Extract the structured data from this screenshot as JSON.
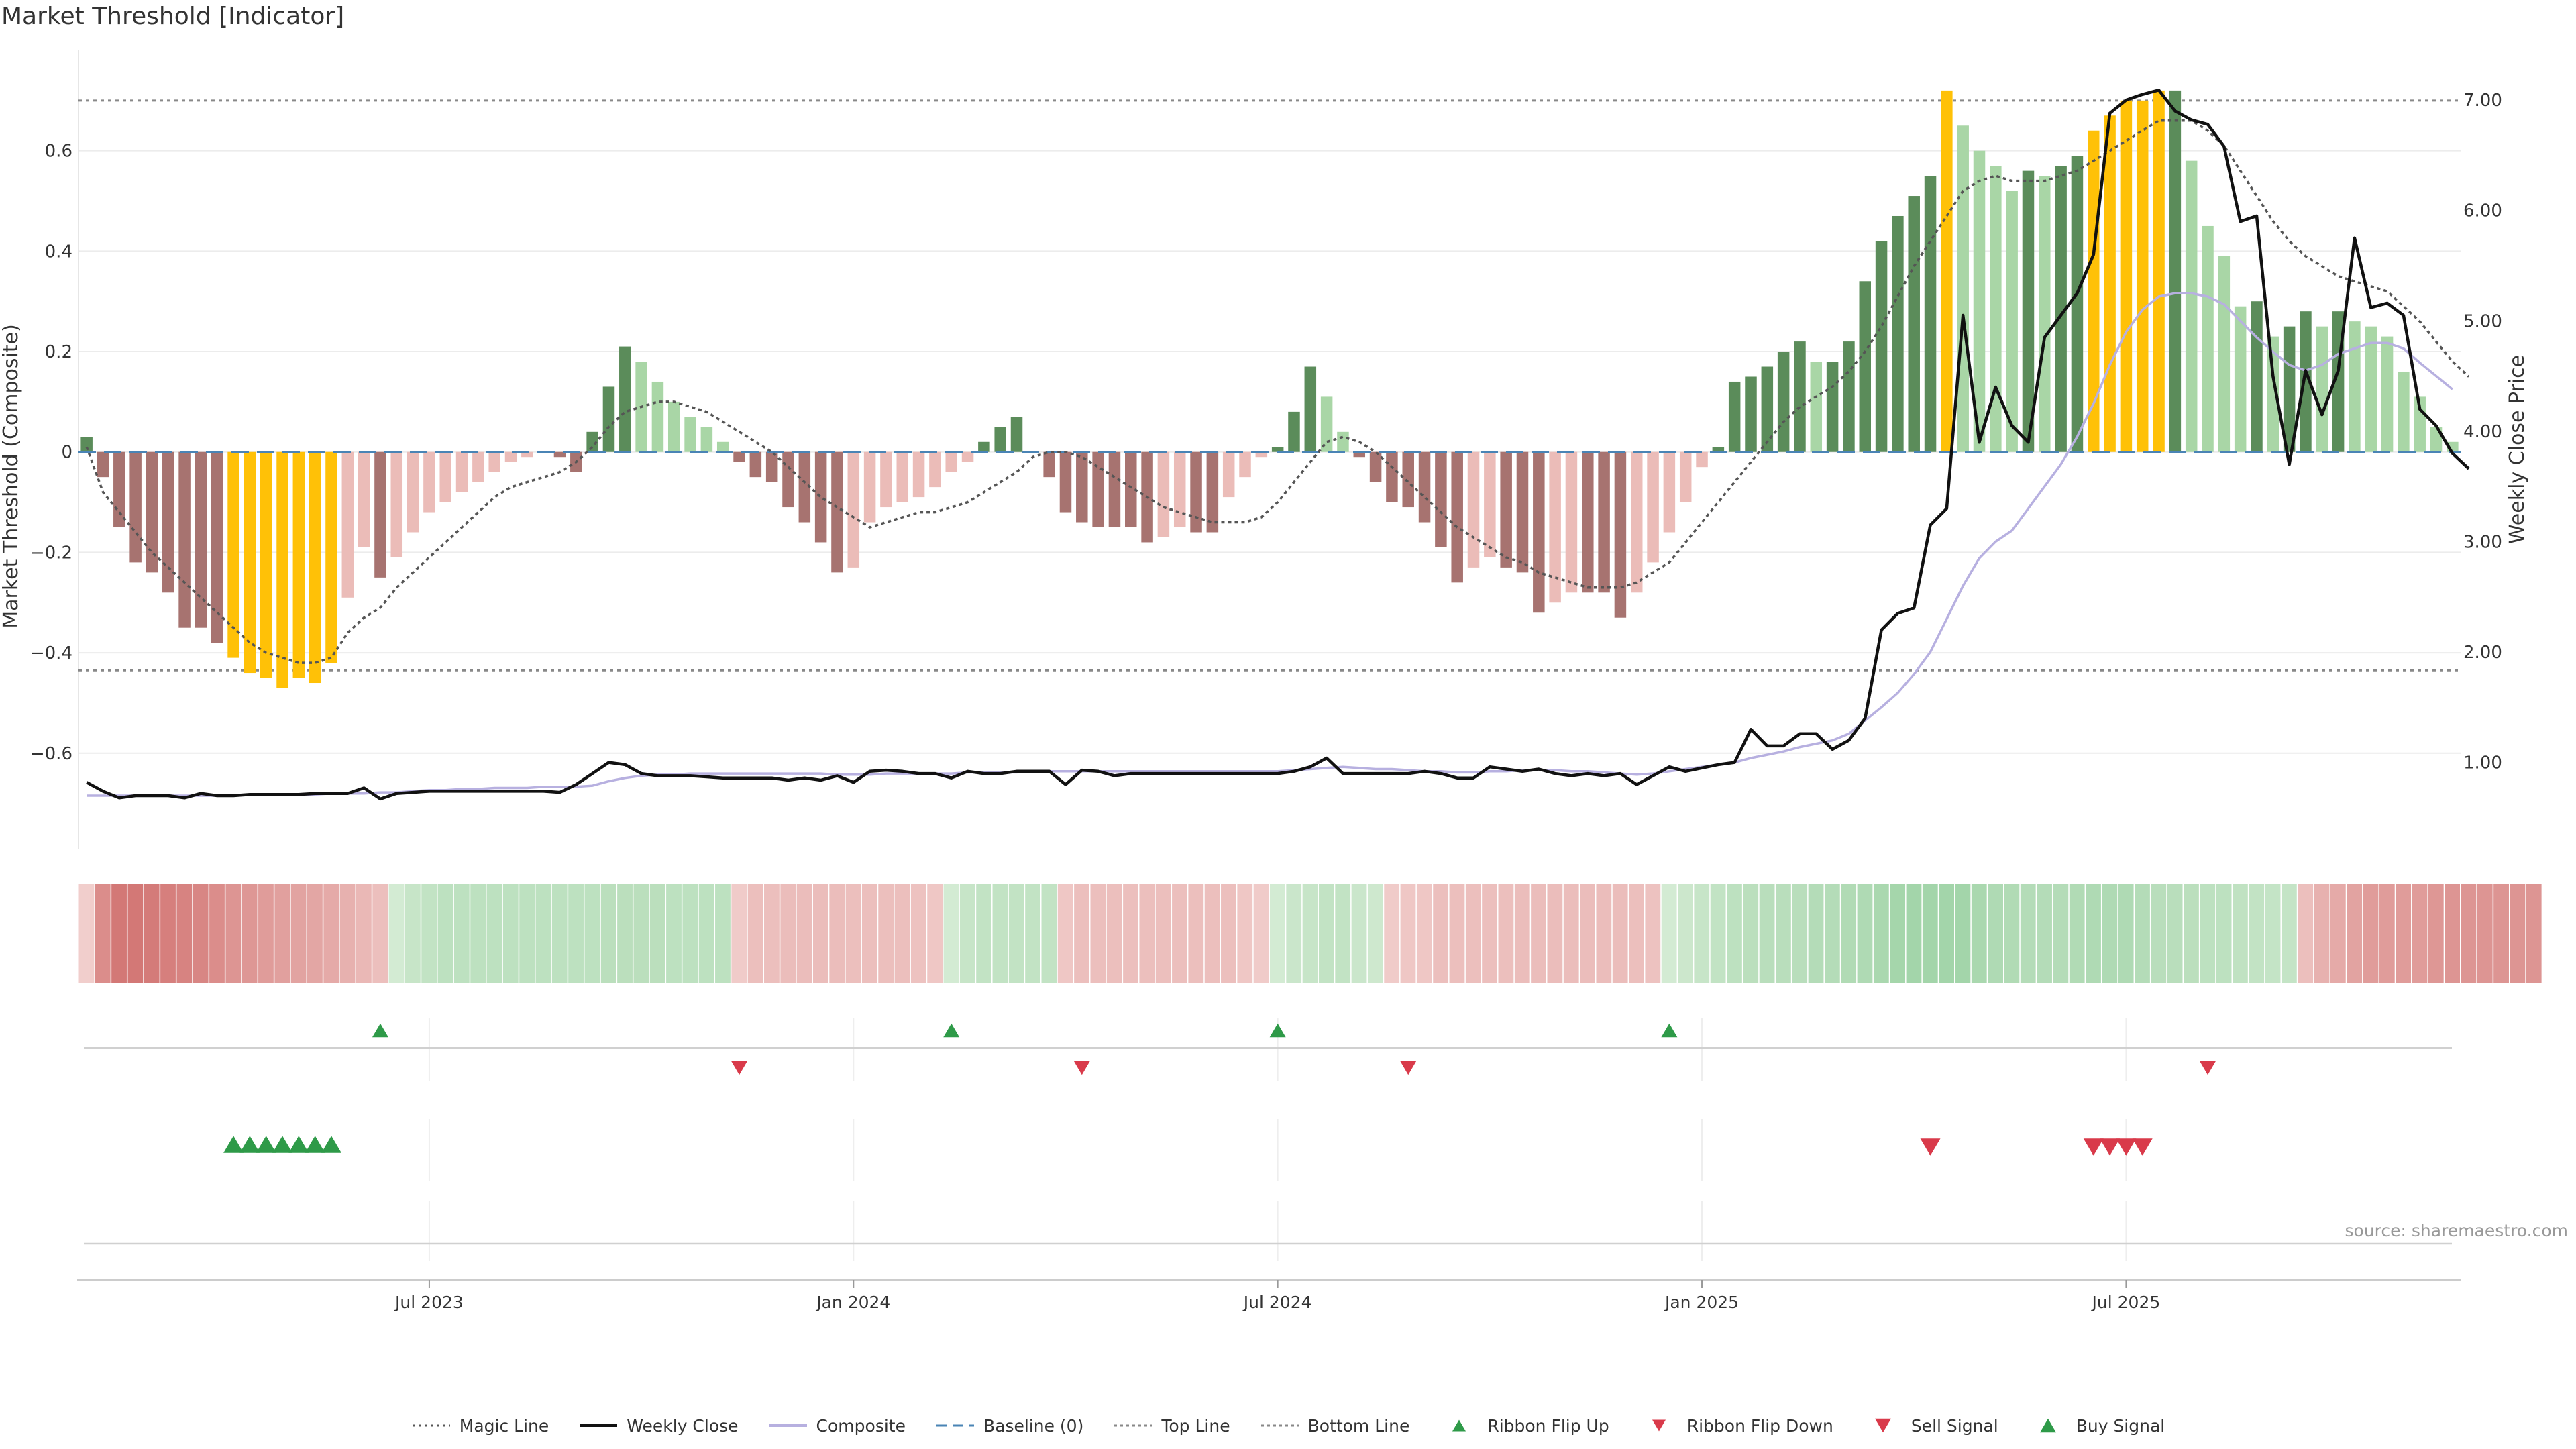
{
  "title": "Market Threshold [Indicator]",
  "source": "source: sharemaestro.com",
  "chart_data": {
    "type": "bar",
    "ylabel_left": "Market Threshold (Composite)",
    "ylabel_right": "Weekly Close Price",
    "ylim_left": [
      -0.79,
      0.8
    ],
    "ylim_right": [
      0.22,
      7.45
    ],
    "yticks_left": [
      -0.6,
      -0.4,
      -0.2,
      0,
      0.2,
      0.4,
      0.6
    ],
    "yticks_left_labels": [
      "−0.6",
      "−0.4",
      "−0.2",
      "0",
      "0.2",
      "0.4",
      "0.6"
    ],
    "yticks_right": [
      1,
      2,
      3,
      4,
      5,
      6,
      7
    ],
    "yticks_right_labels": [
      "1.00",
      "2.00",
      "3.00",
      "4.00",
      "5.00",
      "6.00",
      "7.00"
    ],
    "top_line": 0.7,
    "bottom_line": -0.435,
    "x_ticks": [
      "Jul 2023",
      "Jan 2024",
      "Jul 2024",
      "Jan 2025",
      "Jul 2025"
    ],
    "x_tick_week_index": [
      21,
      47,
      73,
      99,
      125
    ],
    "colors": {
      "bull_strong": "#5b8c5a",
      "bull_weak": "#a9d6a6",
      "bear_strong": "#a77370",
      "bear_weak": "#ebbcb8",
      "extreme": "#ffc107",
      "weekly_close": "#111111",
      "composite": "#b7b0e0",
      "magic": "#555555",
      "baseline": "#4a84b5",
      "threshold": "#888888",
      "buy": "#2e9a48",
      "sell": "#d93a4a"
    },
    "bars": [
      0.03,
      -0.05,
      -0.15,
      -0.22,
      -0.24,
      -0.28,
      -0.35,
      -0.35,
      -0.38,
      -0.41,
      -0.44,
      -0.45,
      -0.47,
      -0.45,
      -0.46,
      -0.42,
      -0.29,
      -0.19,
      -0.25,
      -0.21,
      -0.16,
      -0.12,
      -0.1,
      -0.08,
      -0.06,
      -0.04,
      -0.02,
      -0.01,
      0,
      -0.01,
      -0.04,
      0.04,
      0.13,
      0.21,
      0.18,
      0.14,
      0.1,
      0.07,
      0.05,
      0.02,
      -0.02,
      -0.05,
      -0.06,
      -0.11,
      -0.14,
      -0.18,
      -0.24,
      -0.23,
      -0.14,
      -0.11,
      -0.1,
      -0.09,
      -0.07,
      -0.04,
      -0.02,
      0.02,
      0.05,
      0.07,
      0,
      -0.05,
      -0.12,
      -0.14,
      -0.15,
      -0.15,
      -0.15,
      -0.18,
      -0.17,
      -0.15,
      -0.16,
      -0.16,
      -0.09,
      -0.05,
      -0.01,
      0.01,
      0.08,
      0.17,
      0.11,
      0.04,
      -0.01,
      -0.06,
      -0.1,
      -0.11,
      -0.14,
      -0.19,
      -0.26,
      -0.23,
      -0.21,
      -0.23,
      -0.24,
      -0.32,
      -0.3,
      -0.28,
      -0.28,
      -0.28,
      -0.33,
      -0.28,
      -0.22,
      -0.16,
      -0.1,
      -0.03,
      0.01,
      0.14,
      0.15,
      0.17,
      0.2,
      0.22,
      0.18,
      0.18,
      0.22,
      0.34,
      0.42,
      0.47,
      0.51,
      0.55,
      0.72,
      0.65,
      0.6,
      0.57,
      0.52,
      0.56,
      0.55,
      0.57,
      0.59,
      0.64,
      0.67,
      0.7,
      0.7,
      0.72,
      0.72,
      0.58,
      0.45,
      0.39,
      0.29,
      0.3,
      0.23,
      0.25,
      0.28,
      0.25,
      0.28,
      0.26,
      0.25,
      0.23,
      0.16,
      0.11,
      0.05,
      0.02
    ],
    "extreme_weeks": [
      9,
      10,
      11,
      12,
      13,
      14,
      15,
      114,
      123,
      124,
      125,
      126,
      127
    ],
    "weekly_close": [
      0.82,
      0.74,
      0.68,
      0.7,
      0.7,
      0.7,
      0.68,
      0.72,
      0.7,
      0.7,
      0.71,
      0.71,
      0.71,
      0.71,
      0.72,
      0.72,
      0.72,
      0.77,
      0.67,
      0.72,
      0.73,
      0.74,
      0.74,
      0.74,
      0.74,
      0.74,
      0.74,
      0.74,
      0.74,
      0.73,
      0.8,
      0.9,
      1.0,
      0.98,
      0.9,
      0.88,
      0.88,
      0.88,
      0.87,
      0.86,
      0.86,
      0.86,
      0.86,
      0.84,
      0.86,
      0.84,
      0.88,
      0.82,
      0.92,
      0.93,
      0.92,
      0.9,
      0.9,
      0.86,
      0.92,
      0.9,
      0.9,
      0.92,
      0.92,
      0.92,
      0.8,
      0.93,
      0.92,
      0.88,
      0.9,
      0.9,
      0.9,
      0.9,
      0.9,
      0.9,
      0.9,
      0.9,
      0.9,
      0.9,
      0.92,
      0.96,
      1.04,
      0.9,
      0.9,
      0.9,
      0.9,
      0.9,
      0.92,
      0.9,
      0.86,
      0.86,
      0.96,
      0.94,
      0.92,
      0.94,
      0.9,
      0.88,
      0.9,
      0.88,
      0.9,
      0.8,
      0.88,
      0.96,
      0.92,
      0.95,
      0.98,
      1.0,
      1.3,
      1.15,
      1.15,
      1.26,
      1.26,
      1.12,
      1.2,
      1.4,
      2.2,
      2.35,
      2.4,
      3.15,
      3.3,
      5.05,
      3.9,
      4.4,
      4.05,
      3.9,
      4.85,
      5.05,
      5.25,
      5.6,
      6.88,
      7.0,
      7.05,
      7.09,
      6.9,
      6.82,
      6.78,
      6.58,
      5.9,
      5.95,
      4.5,
      3.7,
      4.55,
      4.15,
      4.55,
      5.75,
      5.12,
      5.16,
      5.05,
      4.2,
      4.05,
      3.8,
      3.66
    ],
    "composite_price_scale": [
      0.7,
      0.7,
      0.7,
      0.7,
      0.7,
      0.7,
      0.7,
      0.7,
      0.7,
      0.7,
      0.71,
      0.71,
      0.71,
      0.71,
      0.71,
      0.72,
      0.72,
      0.72,
      0.73,
      0.73,
      0.74,
      0.75,
      0.75,
      0.76,
      0.76,
      0.77,
      0.77,
      0.77,
      0.78,
      0.78,
      0.78,
      0.79,
      0.83,
      0.86,
      0.88,
      0.89,
      0.89,
      0.9,
      0.9,
      0.9,
      0.9,
      0.9,
      0.9,
      0.9,
      0.9,
      0.9,
      0.89,
      0.89,
      0.89,
      0.9,
      0.9,
      0.9,
      0.9,
      0.9,
      0.91,
      0.91,
      0.91,
      0.91,
      0.92,
      0.92,
      0.92,
      0.92,
      0.92,
      0.92,
      0.92,
      0.92,
      0.92,
      0.92,
      0.92,
      0.92,
      0.92,
      0.92,
      0.92,
      0.92,
      0.93,
      0.94,
      0.95,
      0.96,
      0.95,
      0.94,
      0.94,
      0.93,
      0.92,
      0.92,
      0.91,
      0.91,
      0.92,
      0.92,
      0.93,
      0.93,
      0.93,
      0.92,
      0.92,
      0.91,
      0.9,
      0.89,
      0.9,
      0.92,
      0.94,
      0.96,
      0.98,
      1.0,
      1.04,
      1.07,
      1.1,
      1.14,
      1.17,
      1.2,
      1.26,
      1.38,
      1.5,
      1.63,
      1.8,
      2.0,
      2.3,
      2.6,
      2.85,
      3.0,
      3.1,
      3.3,
      3.5,
      3.7,
      3.95,
      4.25,
      4.6,
      4.9,
      5.1,
      5.22,
      5.25,
      5.25,
      5.22,
      5.15,
      5.0,
      4.85,
      4.72,
      4.6,
      4.55,
      4.6,
      4.7,
      4.75,
      4.8,
      4.8,
      4.75,
      4.62,
      4.5,
      4.38
    ],
    "magic_line": [
      0.01,
      -0.08,
      -0.12,
      -0.16,
      -0.2,
      -0.23,
      -0.26,
      -0.29,
      -0.32,
      -0.35,
      -0.38,
      -0.4,
      -0.41,
      -0.42,
      -0.42,
      -0.41,
      -0.36,
      -0.33,
      -0.31,
      -0.27,
      -0.24,
      -0.21,
      -0.18,
      -0.15,
      -0.12,
      -0.09,
      -0.07,
      -0.06,
      -0.05,
      -0.04,
      -0.02,
      0.01,
      0.05,
      0.08,
      0.09,
      0.1,
      0.1,
      0.09,
      0.08,
      0.06,
      0.04,
      0.02,
      0,
      -0.03,
      -0.06,
      -0.09,
      -0.11,
      -0.13,
      -0.15,
      -0.14,
      -0.13,
      -0.12,
      -0.12,
      -0.11,
      -0.1,
      -0.08,
      -0.06,
      -0.04,
      -0.01,
      0.0,
      0.0,
      -0.01,
      -0.03,
      -0.05,
      -0.07,
      -0.09,
      -0.11,
      -0.12,
      -0.13,
      -0.14,
      -0.14,
      -0.14,
      -0.13,
      -0.1,
      -0.06,
      -0.02,
      0.02,
      0.03,
      0.02,
      0.0,
      -0.03,
      -0.06,
      -0.09,
      -0.12,
      -0.15,
      -0.17,
      -0.19,
      -0.21,
      -0.22,
      -0.24,
      -0.25,
      -0.26,
      -0.27,
      -0.27,
      -0.27,
      -0.26,
      -0.24,
      -0.22,
      -0.18,
      -0.14,
      -0.1,
      -0.06,
      -0.02,
      0.02,
      0.06,
      0.09,
      0.11,
      0.13,
      0.16,
      0.2,
      0.25,
      0.31,
      0.37,
      0.42,
      0.47,
      0.52,
      0.54,
      0.55,
      0.54,
      0.54,
      0.54,
      0.55,
      0.56,
      0.58,
      0.6,
      0.62,
      0.64,
      0.66,
      0.66,
      0.66,
      0.64,
      0.61,
      0.56,
      0.51,
      0.46,
      0.42,
      0.39,
      0.37,
      0.35,
      0.34,
      0.33,
      0.32,
      0.29,
      0.26,
      0.22,
      0.18,
      0.15
    ],
    "ribbon": [
      -0.1,
      -0.55,
      -0.7,
      -0.7,
      -0.68,
      -0.65,
      -0.62,
      -0.6,
      -0.55,
      -0.5,
      -0.48,
      -0.45,
      -0.42,
      -0.4,
      -0.38,
      -0.35,
      -0.3,
      -0.25,
      -0.2,
      0.12,
      0.25,
      0.3,
      0.35,
      0.35,
      0.35,
      0.35,
      0.35,
      0.35,
      0.35,
      0.35,
      0.35,
      0.35,
      0.38,
      0.38,
      0.38,
      0.38,
      0.35,
      0.35,
      0.35,
      0.35,
      -0.12,
      -0.2,
      -0.2,
      -0.22,
      -0.22,
      -0.22,
      -0.22,
      -0.2,
      -0.2,
      -0.2,
      -0.2,
      -0.18,
      -0.15,
      0.12,
      0.25,
      0.3,
      0.3,
      0.3,
      0.3,
      0.3,
      -0.15,
      -0.2,
      -0.2,
      -0.2,
      -0.2,
      -0.2,
      -0.2,
      -0.2,
      -0.2,
      -0.2,
      -0.2,
      -0.15,
      -0.12,
      0.12,
      0.22,
      0.25,
      0.3,
      0.3,
      0.22,
      0.18,
      -0.12,
      -0.15,
      -0.15,
      -0.2,
      -0.2,
      -0.2,
      -0.2,
      -0.2,
      -0.22,
      -0.22,
      -0.22,
      -0.22,
      -0.22,
      -0.22,
      -0.22,
      -0.2,
      -0.18,
      0.12,
      0.2,
      0.25,
      0.3,
      0.35,
      0.38,
      0.4,
      0.4,
      0.4,
      0.45,
      0.45,
      0.48,
      0.5,
      0.55,
      0.6,
      0.62,
      0.62,
      0.62,
      0.62,
      0.55,
      0.5,
      0.48,
      0.45,
      0.45,
      0.45,
      0.48,
      0.5,
      0.5,
      0.5,
      0.45,
      0.4,
      0.4,
      0.38,
      0.35,
      0.35,
      0.32,
      0.3,
      0.28,
      0.28,
      -0.2,
      -0.3,
      -0.35,
      -0.4,
      -0.45,
      -0.45,
      -0.45,
      -0.45,
      -0.48,
      -0.5,
      -0.5,
      -0.5,
      -0.5,
      -0.5,
      -0.5
    ],
    "ribbon_flip_up_weeks": [
      18,
      53,
      73,
      97
    ],
    "ribbon_flip_down_weeks": [
      40,
      61,
      81,
      130
    ],
    "buy_signal_weeks": [
      9,
      10,
      11,
      12,
      13,
      14,
      15
    ],
    "sell_signal_weeks": [
      113,
      123,
      124,
      125,
      126
    ]
  },
  "legend": [
    {
      "label": "Magic Line",
      "icon": "dotted-line",
      "color": "#555555"
    },
    {
      "label": "Weekly Close",
      "icon": "solid-line",
      "color": "#111111"
    },
    {
      "label": "Composite",
      "icon": "solid-line",
      "color": "#b7b0e0"
    },
    {
      "label": "Baseline (0)",
      "icon": "dashed-line",
      "color": "#4a84b5"
    },
    {
      "label": "Top Line",
      "icon": "dotted-line",
      "color": "#888888"
    },
    {
      "label": "Bottom Line",
      "icon": "dotted-line",
      "color": "#888888"
    },
    {
      "label": "Ribbon Flip Up",
      "icon": "triangle-up",
      "color": "#2e9a48"
    },
    {
      "label": "Ribbon Flip Down",
      "icon": "triangle-down",
      "color": "#d93a4a"
    },
    {
      "label": "Sell Signal",
      "icon": "triangle-down-large",
      "color": "#d93a4a"
    },
    {
      "label": "Buy Signal",
      "icon": "triangle-up-large",
      "color": "#2e9a48"
    }
  ]
}
